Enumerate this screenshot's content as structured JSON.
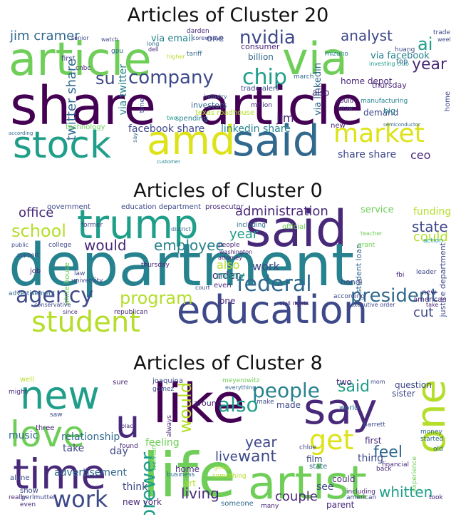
{
  "panels": [
    {
      "title": "Articles of Cluster 20",
      "words": [
        "article",
        "via",
        "share",
        "article",
        "stock",
        "amd",
        "said",
        "market",
        "nvidia",
        "company",
        "chip",
        "ai",
        "year",
        "su",
        "analyst",
        "jim cramer",
        "via email",
        "one",
        "twitter share",
        "via twitter",
        "via linkedin",
        "linkedin share",
        "facebook share",
        "share share",
        "ceo",
        "via facebook",
        "billion",
        "jim",
        "consumer",
        "home depot",
        "demand",
        "thursday",
        "technology",
        "cnbc",
        "gpu",
        "first",
        "trade",
        "week",
        "mizuho",
        "investing club",
        "tariff",
        "senior",
        "watch",
        "top",
        "texas roadhouse",
        "also",
        "higher",
        "investors",
        "trade alert",
        "industry",
        "manufacturing",
        "could",
        "know",
        "big",
        "new",
        "home",
        "spending",
        "two",
        "time",
        "dell",
        "long",
        "million",
        "march",
        "semiconductor",
        "according",
        "customer",
        "say",
        "huang",
        "darden",
        "coreweave"
      ]
    },
    {
      "title": "Articles of Cluster 0",
      "words": [
        "said",
        "department",
        "trump",
        "education",
        "student",
        "agency",
        "federal",
        "president",
        "office",
        "school",
        "administration",
        "program",
        "employee",
        "would",
        "year",
        "also",
        "work",
        "state",
        "order",
        "funding",
        "service",
        "could",
        "cut",
        "justice department",
        "student loan",
        "government",
        "education department",
        "prosecutor",
        "white house",
        "thursday",
        "including",
        "many",
        "official",
        "people",
        "even",
        "one",
        "republican",
        "american",
        "new",
        "bondi",
        "executive order",
        "civil rights",
        "advertisement",
        "college",
        "law",
        "university",
        "job",
        "public",
        "support",
        "district",
        "conservative",
        "court",
        "fbi",
        "leader",
        "action",
        "teacher",
        "grant",
        "take",
        "since",
        "former",
        "washington",
        "attorney",
        "according"
      ]
    },
    {
      "title": "Articles of Cluster 8",
      "words": [
        "like",
        "say",
        "new",
        "life",
        "artist",
        "one",
        "time",
        "love",
        "work",
        "said",
        "get",
        "people",
        "also",
        "u",
        "would",
        "year",
        "brewer",
        "want",
        "feel",
        "whitten",
        "living",
        "couple",
        "think",
        "live",
        "see",
        "could",
        "first",
        "thing",
        "advertisement",
        "relationship",
        "music",
        "take",
        "feeling",
        "day",
        "home",
        "art",
        "question",
        "two",
        "made",
        "world",
        "film",
        "state",
        "woman",
        "parent",
        "sister",
        "financial",
        "back",
        "show",
        "well",
        "alone",
        "three",
        "might",
        "really",
        "even",
        "joaquina",
        "gomez",
        "meyerowitz",
        "chloe",
        "new york",
        "business",
        "someone",
        "something",
        "old",
        "many",
        "around",
        "perlmutter",
        "american",
        "including",
        "make",
        "going",
        "barrett",
        "mom",
        "everything",
        "experience",
        "money",
        "started",
        "took",
        "always",
        "black",
        "sure",
        "saw",
        "found"
      ]
    }
  ],
  "colors": {
    "palette": [
      "#440154",
      "#482878",
      "#3e4989",
      "#31688e",
      "#26828e",
      "#1f9e89",
      "#35b779",
      "#6ece58",
      "#b5de2b",
      "#dde318"
    ]
  }
}
